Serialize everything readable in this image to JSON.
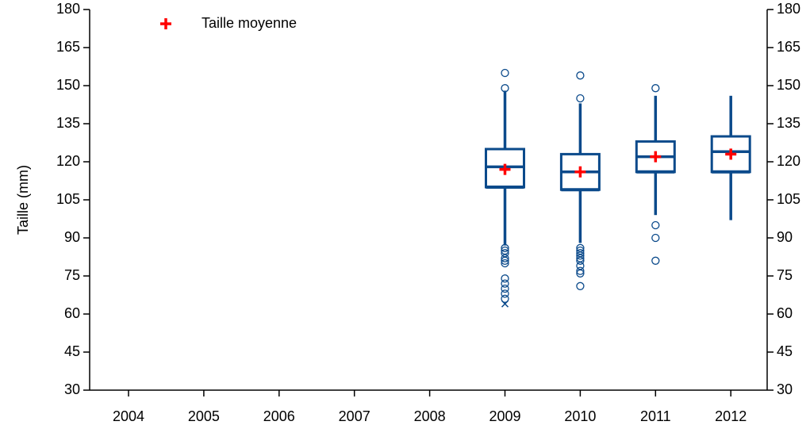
{
  "chart_data": {
    "type": "box",
    "ylabel": "Taille (mm)",
    "categories": [
      "2004",
      "2005",
      "2006",
      "2007",
      "2008",
      "2009",
      "2010",
      "2011",
      "2012"
    ],
    "boxes": [
      null,
      null,
      null,
      null,
      null,
      {
        "whisker_low": 87,
        "q1": 110,
        "median": 118,
        "q3": 125,
        "whisker_high": 148,
        "mean": 117,
        "outliers": [
          155,
          149,
          86,
          85,
          84,
          82,
          81,
          80,
          74,
          72,
          70,
          68,
          66
        ],
        "extremes": [
          64
        ]
      },
      {
        "whisker_low": 88,
        "q1": 109,
        "median": 116,
        "q3": 123,
        "whisker_high": 143,
        "mean": 116,
        "outliers": [
          154,
          145,
          86,
          85,
          84,
          83,
          82,
          81,
          79,
          77,
          76,
          71
        ],
        "extremes": []
      },
      {
        "whisker_low": 99,
        "q1": 116,
        "median": 122,
        "q3": 128,
        "whisker_high": 146,
        "mean": 122,
        "outliers": [
          149,
          95,
          90,
          81
        ],
        "extremes": []
      },
      {
        "whisker_low": 97,
        "q1": 116,
        "median": 124,
        "q3": 130,
        "whisker_high": 146,
        "mean": 123,
        "outliers": [],
        "extremes": []
      }
    ],
    "mean_label": "Taille moyenne",
    "mean_color": "#ff0000",
    "box_color": "#0b4a8b",
    "ylim": [
      30,
      180
    ],
    "yticks": [
      30,
      45,
      60,
      75,
      90,
      105,
      120,
      135,
      150,
      165,
      180
    ],
    "y2lim": [
      30,
      180
    ],
    "y2ticks": [
      30,
      45,
      60,
      75,
      90,
      105,
      120,
      135,
      150,
      165,
      180
    ]
  }
}
